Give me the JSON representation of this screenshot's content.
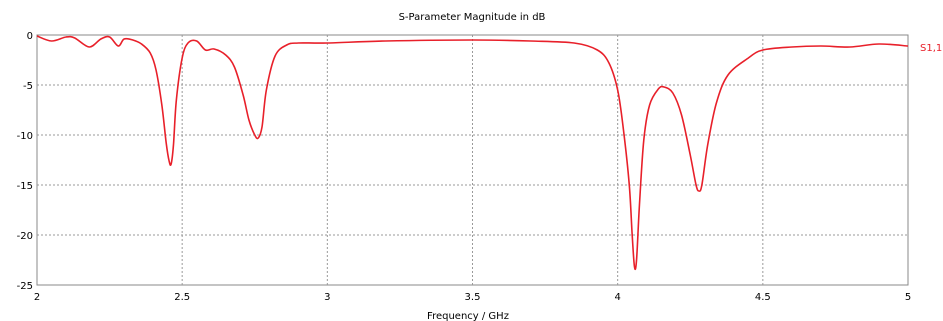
{
  "chart_data": {
    "type": "line",
    "title": "S-Parameter Magnitude in dB",
    "xlabel": "Frequency / GHz",
    "ylabel": "",
    "xlim": [
      2,
      5
    ],
    "ylim": [
      -25,
      0
    ],
    "x_ticks": [
      "2",
      "2.5",
      "3",
      "3.5",
      "4",
      "4.5",
      "5"
    ],
    "y_ticks": [
      "0",
      "-5",
      "-10",
      "-15",
      "-20",
      "-25"
    ],
    "grid": true,
    "legend_position": "right",
    "series": [
      {
        "name": "S1,1",
        "color": "#e8202a",
        "x": [
          2.0,
          2.05,
          2.1,
          2.13,
          2.18,
          2.22,
          2.25,
          2.28,
          2.3,
          2.33,
          2.36,
          2.39,
          2.41,
          2.43,
          2.445,
          2.455,
          2.462,
          2.47,
          2.48,
          2.5,
          2.52,
          2.55,
          2.58,
          2.61,
          2.65,
          2.68,
          2.71,
          2.73,
          2.75,
          2.762,
          2.775,
          2.79,
          2.82,
          2.86,
          2.9,
          3.0,
          3.2,
          3.5,
          3.7,
          3.85,
          3.93,
          3.97,
          4.0,
          4.02,
          4.04,
          4.05,
          4.058,
          4.065,
          4.075,
          4.09,
          4.11,
          4.14,
          4.16,
          4.19,
          4.22,
          4.25,
          4.27,
          4.28,
          4.29,
          4.31,
          4.34,
          4.38,
          4.45,
          4.5,
          4.6,
          4.7,
          4.8,
          4.9,
          5.0
        ],
        "y": [
          -0.1,
          -0.6,
          -0.2,
          -0.3,
          -1.2,
          -0.4,
          -0.2,
          -1.1,
          -0.4,
          -0.5,
          -0.9,
          -1.8,
          -3.5,
          -7.0,
          -10.8,
          -12.6,
          -12.9,
          -11.0,
          -6.5,
          -2.3,
          -0.8,
          -0.6,
          -1.5,
          -1.4,
          -2.0,
          -3.2,
          -6.0,
          -8.5,
          -10.0,
          -10.3,
          -9.2,
          -5.5,
          -2.1,
          -1.0,
          -0.8,
          -0.8,
          -0.6,
          -0.5,
          -0.6,
          -0.8,
          -1.5,
          -2.8,
          -5.5,
          -9.5,
          -15.0,
          -20.0,
          -23.2,
          -22.5,
          -17.0,
          -10.5,
          -7.0,
          -5.4,
          -5.2,
          -5.8,
          -8.0,
          -12.0,
          -15.0,
          -15.6,
          -15.0,
          -11.0,
          -6.8,
          -4.0,
          -2.3,
          -1.5,
          -1.2,
          -1.1,
          -1.2,
          -0.9,
          -1.1
        ]
      }
    ]
  }
}
